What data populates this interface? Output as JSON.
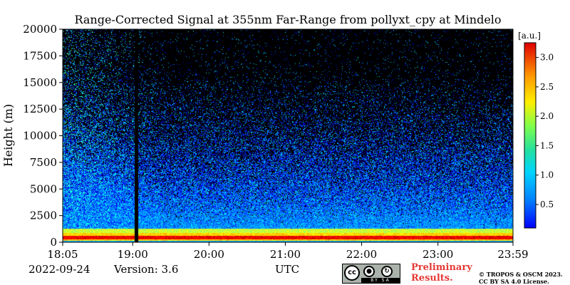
{
  "chart_data": {
    "type": "heatmap",
    "title": "Range-Corrected Signal at 355nm Far-Range from pollyxt_cpy at Mindelo",
    "ylabel": "Height (m)",
    "xlabel": "UTC",
    "x_tick_labels": [
      "18:05",
      "19:00",
      "20:00",
      "21:00",
      "22:00",
      "23:00",
      "23:59"
    ],
    "x_tick_hours": [
      18.0833,
      19.0,
      20.0,
      21.0,
      22.0,
      23.0,
      23.9833
    ],
    "xlim": [
      18.0833,
      23.9833
    ],
    "y_ticks": [
      0,
      2500,
      5000,
      7500,
      10000,
      12500,
      15000,
      17500,
      20000
    ],
    "y_tick_labels": [
      "0",
      "2500",
      "5000",
      "7500",
      "10000",
      "12500",
      "15000",
      "17500",
      "20000"
    ],
    "ylim": [
      0,
      20000
    ],
    "colorbar": {
      "unit": "[a.u.]",
      "range": [
        0.1,
        3.25
      ],
      "ticks": [
        0.5,
        1.0,
        1.5,
        2.0,
        2.5,
        3.0
      ],
      "tick_labels": [
        "0.5",
        "1.0",
        "1.5",
        "2.0",
        "2.5",
        "3.0"
      ],
      "colormap": "jet"
    },
    "features": {
      "no_data_gap_hours": [
        19.02,
        19.07
      ],
      "surface_band_height_m": [
        0,
        150
      ],
      "boundary_layer_top_m": 1300,
      "high_signal_layer_m": [
        300,
        600
      ]
    },
    "background": "#000000"
  },
  "footer": {
    "date": "2022-09-24",
    "version": "Version: 3.6",
    "axis_label": "UTC",
    "preliminary": "Preliminary Results.",
    "copyright": "© TROPOS & OSCM 2023. CC BY SA 4.0 License.",
    "cc_badge": {
      "cc": "cc",
      "by": "BY",
      "sa": "SA"
    }
  }
}
